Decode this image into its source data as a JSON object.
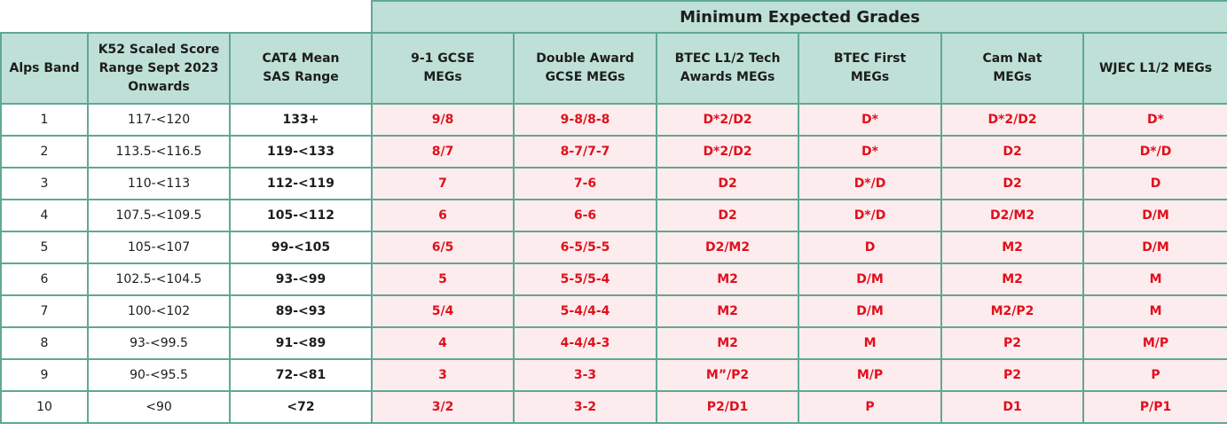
{
  "super_header": "Minimum Expected Grades",
  "headers": {
    "band": "Alps Band",
    "k52": [
      "K52 Scaled Score",
      "Range Sept 2023",
      "Onwards"
    ],
    "cat4": [
      "CAT4 Mean",
      "SAS Range"
    ],
    "gcse": [
      "9-1 GCSE",
      "MEGs"
    ],
    "double": [
      "Double Award",
      "GCSE MEGs"
    ],
    "btec_tech": [
      "BTEC L1/2 Tech",
      "Awards MEGs"
    ],
    "btec_first": [
      "BTEC First",
      "MEGs"
    ],
    "camnat": [
      "Cam Nat",
      "MEGs"
    ],
    "wjec": "WJEC L1/2 MEGs"
  },
  "rows": [
    {
      "band": "1",
      "k52": "117-<120",
      "sas": "133+",
      "gcse": "9/8",
      "double": "9-8/8-8",
      "btec_tech": "D*2/D2",
      "btec_first": "D*",
      "camnat": "D*2/D2",
      "wjec": "D*"
    },
    {
      "band": "2",
      "k52": "113.5-<116.5",
      "sas": "119-<133",
      "gcse": "8/7",
      "double": "8-7/7-7",
      "btec_tech": "D*2/D2",
      "btec_first": "D*",
      "camnat": "D2",
      "wjec": "D*/D"
    },
    {
      "band": "3",
      "k52": "110-<113",
      "sas": "112-<119",
      "gcse": "7",
      "double": "7-6",
      "btec_tech": "D2",
      "btec_first": "D*/D",
      "camnat": "D2",
      "wjec": "D"
    },
    {
      "band": "4",
      "k52": "107.5-<109.5",
      "sas": "105-<112",
      "gcse": "6",
      "double": "6-6",
      "btec_tech": "D2",
      "btec_first": "D*/D",
      "camnat": "D2/M2",
      "wjec": "D/M"
    },
    {
      "band": "5",
      "k52": "105-<107",
      "sas": "99-<105",
      "gcse": "6/5",
      "double": "6-5/5-5",
      "btec_tech": "D2/M2",
      "btec_first": "D",
      "camnat": "M2",
      "wjec": "D/M"
    },
    {
      "band": "6",
      "k52": "102.5-<104.5",
      "sas": "93-<99",
      "gcse": "5",
      "double": "5-5/5-4",
      "btec_tech": "M2",
      "btec_first": "D/M",
      "camnat": "M2",
      "wjec": "M"
    },
    {
      "band": "7",
      "k52": "100-<102",
      "sas": "89-<93",
      "gcse": "5/4",
      "double": "5-4/4-4",
      "btec_tech": "M2",
      "btec_first": "D/M",
      "camnat": "M2/P2",
      "wjec": "M"
    },
    {
      "band": "8",
      "k52": "93-<99.5",
      "sas": "91-<89",
      "gcse": "4",
      "double": "4-4/4-3",
      "btec_tech": "M2",
      "btec_first": "M",
      "camnat": "P2",
      "wjec": "M/P"
    },
    {
      "band": "9",
      "k52": "90-<95.5",
      "sas": "72-<81",
      "gcse": "3",
      "double": "3-3",
      "btec_tech": "M”/P2",
      "btec_first": "M/P",
      "camnat": "P2",
      "wjec": "P"
    },
    {
      "band": "10",
      "k52": "<90",
      "sas": "<72",
      "gcse": "3/2",
      "double": "3-2",
      "btec_tech": "P2/D1",
      "btec_first": "P",
      "camnat": "D1",
      "wjec": "P/P1"
    }
  ]
}
